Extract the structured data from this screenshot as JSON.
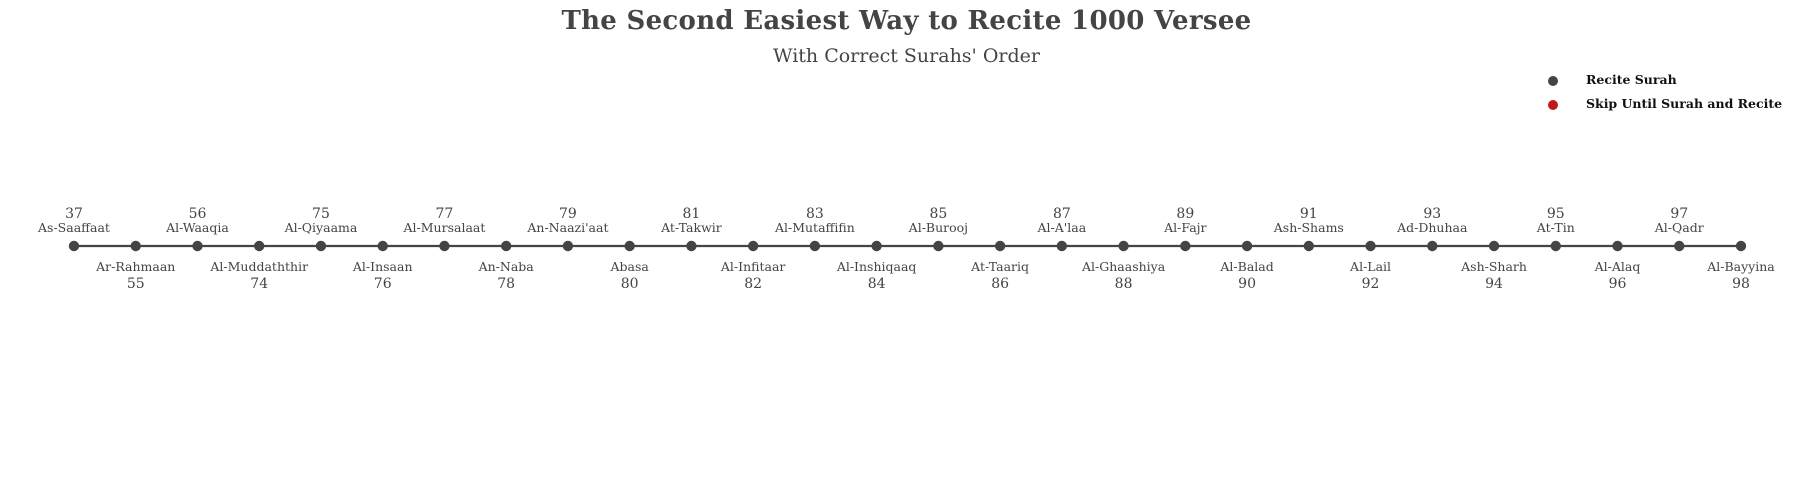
{
  "title": "The Second Easiest Way to Recite 1000 Versee",
  "subtitle": "With Correct Surahs' Order",
  "legend": [
    {
      "label": "Recite Surah",
      "color": "#444444"
    },
    {
      "label": "Skip Until Surah and Recite",
      "color": "#c0191c"
    }
  ],
  "chart_data": {
    "type": "timeline",
    "line_color": "#444444",
    "marker_color": "#444444",
    "events": [
      {
        "number": "37",
        "name": "As-Saaffaat"
      },
      {
        "number": "55",
        "name": "Ar-Rahmaan"
      },
      {
        "number": "56",
        "name": "Al-Waaqia"
      },
      {
        "number": "74",
        "name": "Al-Muddaththir"
      },
      {
        "number": "75",
        "name": "Al-Qiyaama"
      },
      {
        "number": "76",
        "name": "Al-Insaan"
      },
      {
        "number": "77",
        "name": "Al-Mursalaat"
      },
      {
        "number": "78",
        "name": "An-Naba"
      },
      {
        "number": "79",
        "name": "An-Naazi'aat"
      },
      {
        "number": "80",
        "name": "Abasa"
      },
      {
        "number": "81",
        "name": "At-Takwir"
      },
      {
        "number": "82",
        "name": "Al-Infitaar"
      },
      {
        "number": "83",
        "name": "Al-Mutaffifin"
      },
      {
        "number": "84",
        "name": "Al-Inshiqaaq"
      },
      {
        "number": "85",
        "name": "Al-Burooj"
      },
      {
        "number": "86",
        "name": "At-Taariq"
      },
      {
        "number": "87",
        "name": "Al-A'laa"
      },
      {
        "number": "88",
        "name": "Al-Ghaashiya"
      },
      {
        "number": "89",
        "name": "Al-Fajr"
      },
      {
        "number": "90",
        "name": "Al-Balad"
      },
      {
        "number": "91",
        "name": "Ash-Shams"
      },
      {
        "number": "92",
        "name": "Al-Lail"
      },
      {
        "number": "93",
        "name": "Ad-Dhuhaa"
      },
      {
        "number": "94",
        "name": "Ash-Sharh"
      },
      {
        "number": "95",
        "name": "At-Tin"
      },
      {
        "number": "96",
        "name": "Al-Alaq"
      },
      {
        "number": "97",
        "name": "Al-Qadr"
      },
      {
        "number": "98",
        "name": "Al-Bayyina"
      }
    ]
  }
}
